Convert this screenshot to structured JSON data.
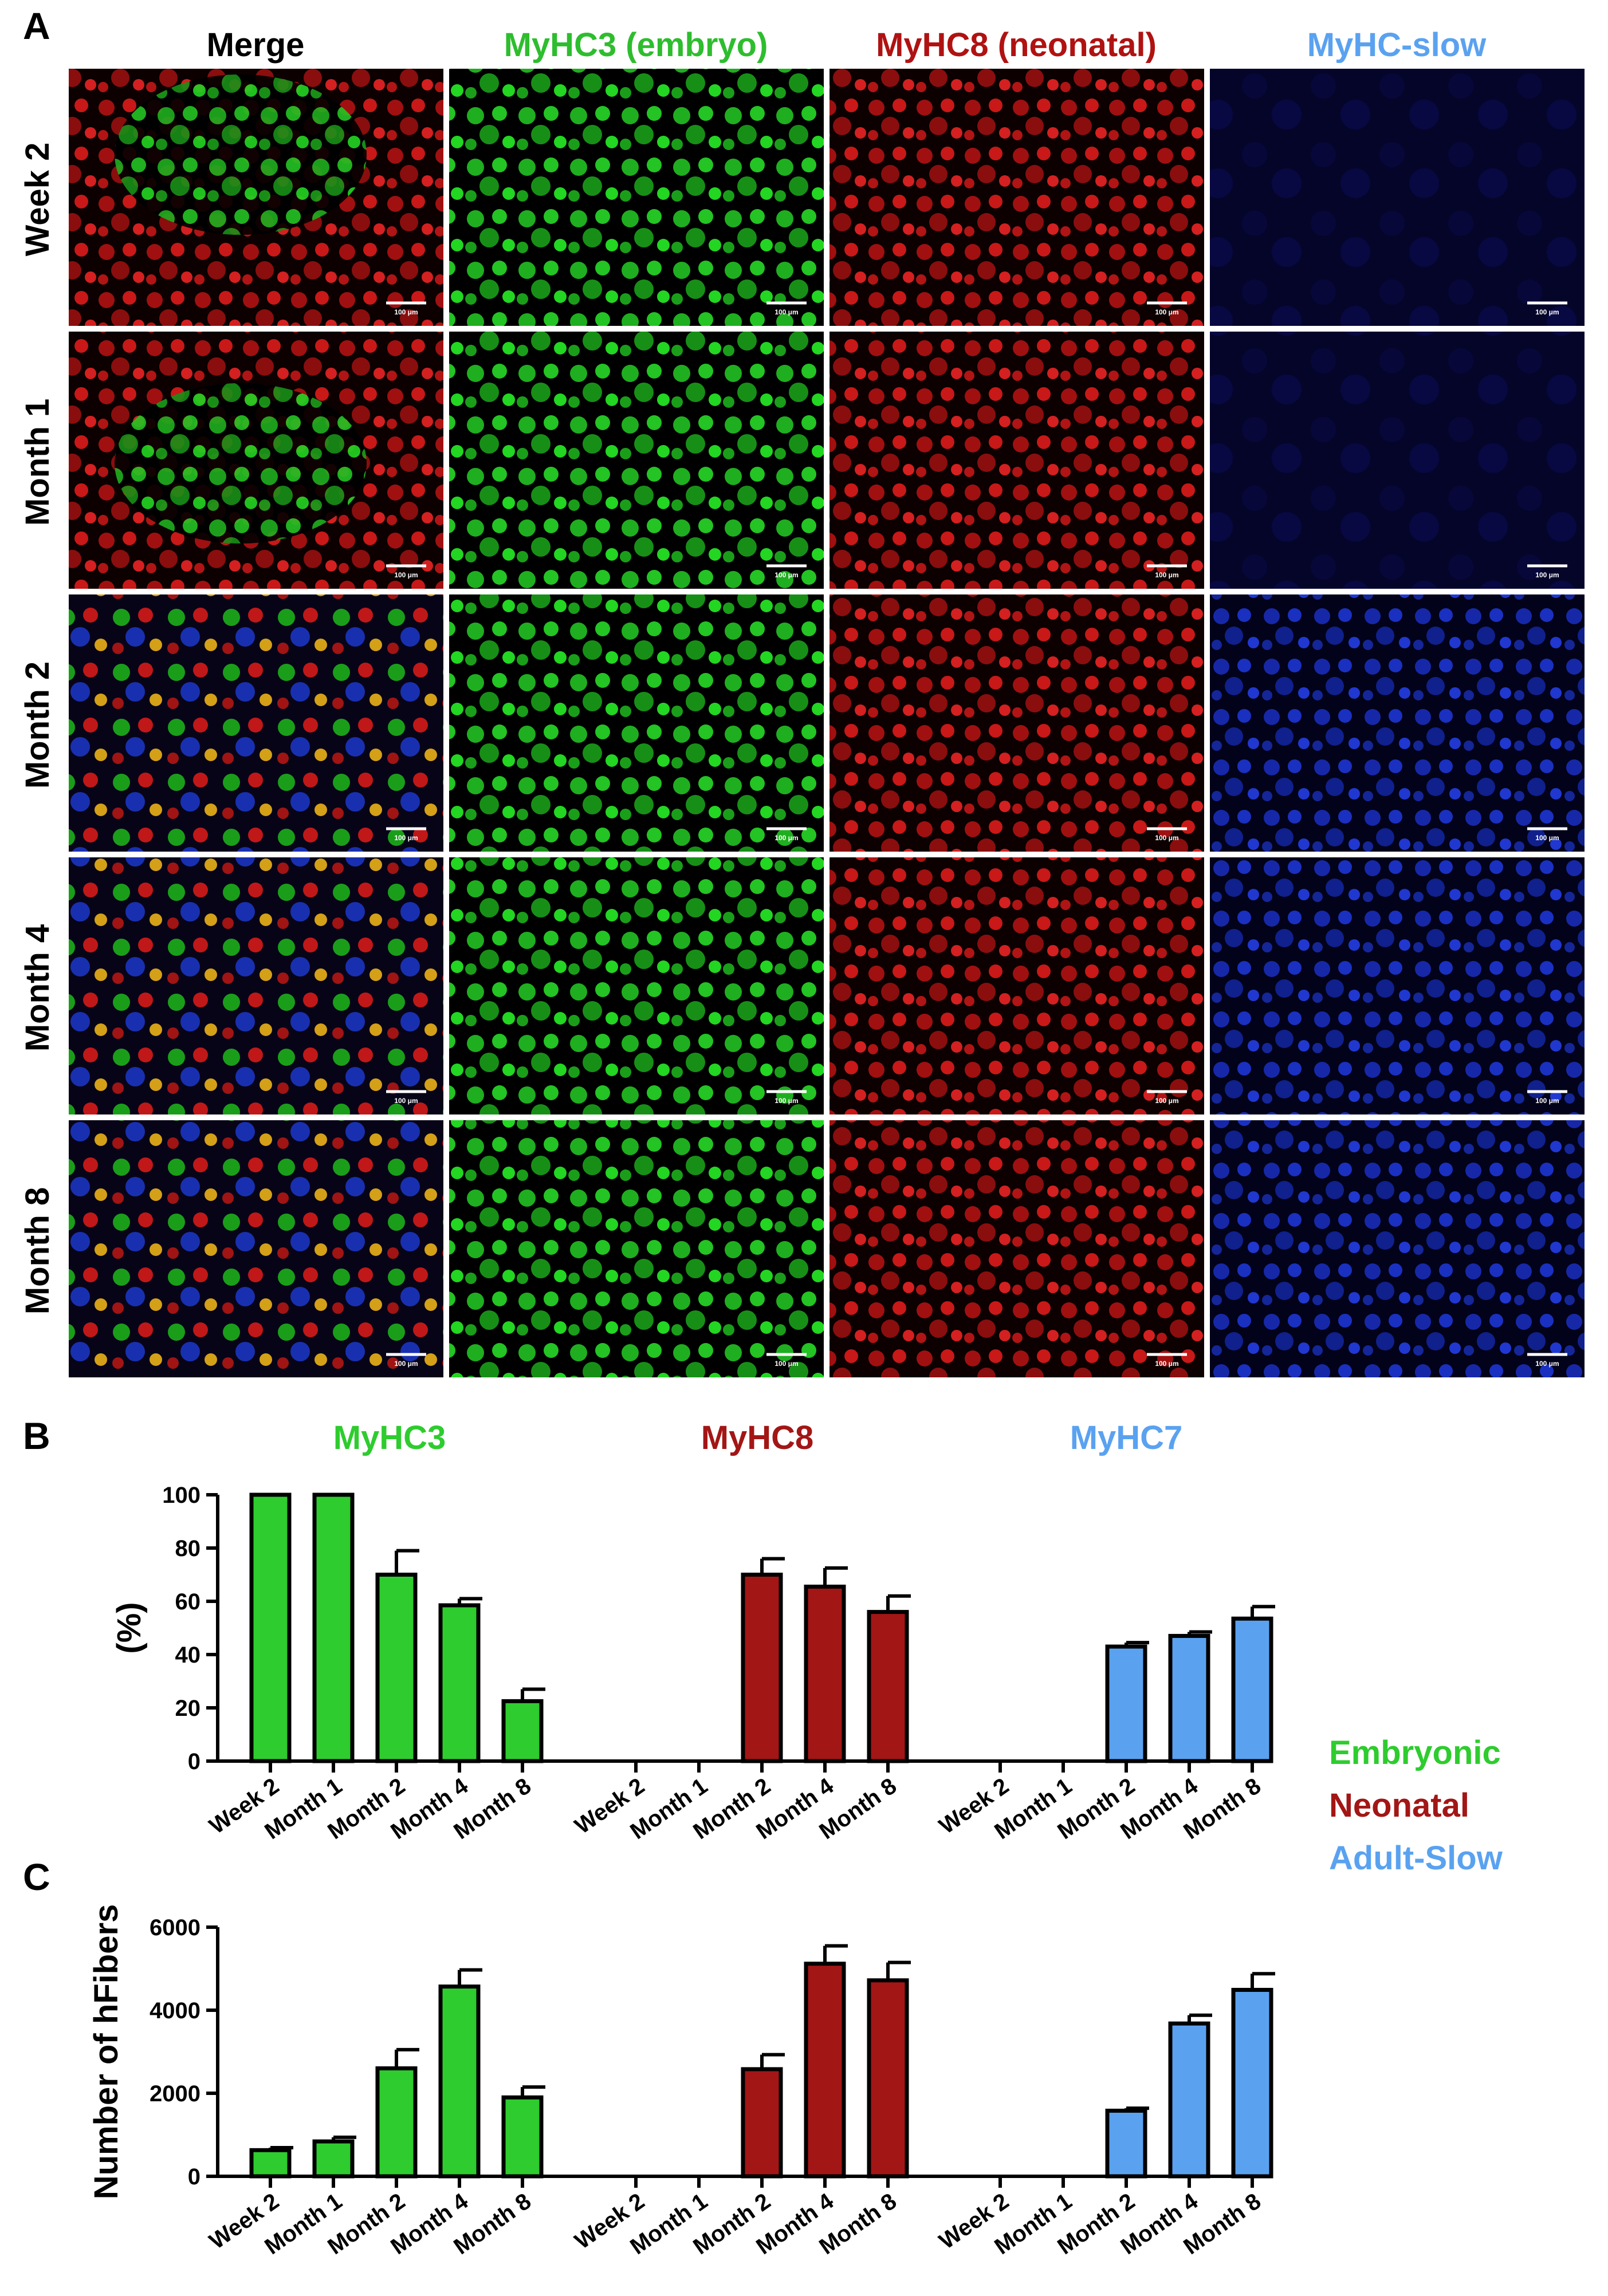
{
  "panel_letters": {
    "a": "A",
    "b": "B",
    "c": "C"
  },
  "micrograph_grid": {
    "columns": [
      {
        "label": "Merge",
        "color": "#000000"
      },
      {
        "label": "MyHC3 (embryo)",
        "color": "#2ebd2e"
      },
      {
        "label": "MyHC8 (neonatal)",
        "color": "#b01212"
      },
      {
        "label": "MyHC-slow",
        "color": "#5aa2f0"
      }
    ],
    "rows": [
      "Week 2",
      "Month 1",
      "Month 2",
      "Month 4",
      "Month 8"
    ],
    "scale_bar_label": "100 μm",
    "channel_colors": {
      "green": "#22e022",
      "red": "#e02020",
      "blue": "#2040e0"
    }
  },
  "legend": [
    {
      "label": "Embryonic",
      "color": "#2ecc2e"
    },
    {
      "label": "Neonatal",
      "color": "#a31616"
    },
    {
      "label": "Adult-Slow",
      "color": "#5aa2f0"
    }
  ],
  "chart_data": [
    {
      "type": "bar",
      "panel": "B",
      "ylabel": "(%)",
      "ylim": [
        0,
        100
      ],
      "yticks": [
        0,
        20,
        40,
        60,
        80,
        100
      ],
      "groups": [
        {
          "name": "MyHC3",
          "color": "#2ecc2e",
          "categories": [
            "Week 2",
            "Month 1",
            "Month 2",
            "Month 4",
            "Month 8"
          ],
          "values": [
            100,
            100,
            70,
            58.5,
            22.5
          ],
          "errors": [
            0,
            0,
            9,
            2.5,
            4.5
          ]
        },
        {
          "name": "MyHC8",
          "color": "#a31616",
          "categories": [
            "Week 2",
            "Month 1",
            "Month 2",
            "Month 4",
            "Month 8"
          ],
          "values": [
            0,
            0,
            70,
            65.5,
            56
          ],
          "errors": [
            0,
            0,
            6,
            7,
            6
          ]
        },
        {
          "name": "MyHC7",
          "color": "#5aa2f0",
          "categories": [
            "Week 2",
            "Month 1",
            "Month 2",
            "Month 4",
            "Month 8"
          ],
          "values": [
            0,
            0,
            43,
            47,
            53.5
          ],
          "errors": [
            0,
            0,
            1.5,
            1.5,
            4.5
          ]
        }
      ]
    },
    {
      "type": "bar",
      "panel": "C",
      "ylabel": "Number of hFibers",
      "ylim": [
        0,
        6000
      ],
      "yticks": [
        0,
        2000,
        4000,
        6000
      ],
      "groups": [
        {
          "name": "MyHC3",
          "color": "#2ecc2e",
          "categories": [
            "Week 2",
            "Month 1",
            "Month 2",
            "Month 4",
            "Month 8"
          ],
          "values": [
            630,
            840,
            2600,
            4570,
            1900
          ],
          "errors": [
            60,
            100,
            450,
            400,
            250
          ]
        },
        {
          "name": "MyHC8",
          "color": "#a31616",
          "categories": [
            "Week 2",
            "Month 1",
            "Month 2",
            "Month 4",
            "Month 8"
          ],
          "values": [
            0,
            0,
            2580,
            5120,
            4720
          ],
          "errors": [
            0,
            0,
            350,
            430,
            430
          ]
        },
        {
          "name": "MyHC7",
          "color": "#5aa2f0",
          "categories": [
            "Week 2",
            "Month 1",
            "Month 2",
            "Month 4",
            "Month 8"
          ],
          "values": [
            0,
            0,
            1580,
            3680,
            4490
          ],
          "errors": [
            0,
            0,
            60,
            200,
            390
          ]
        }
      ]
    }
  ]
}
